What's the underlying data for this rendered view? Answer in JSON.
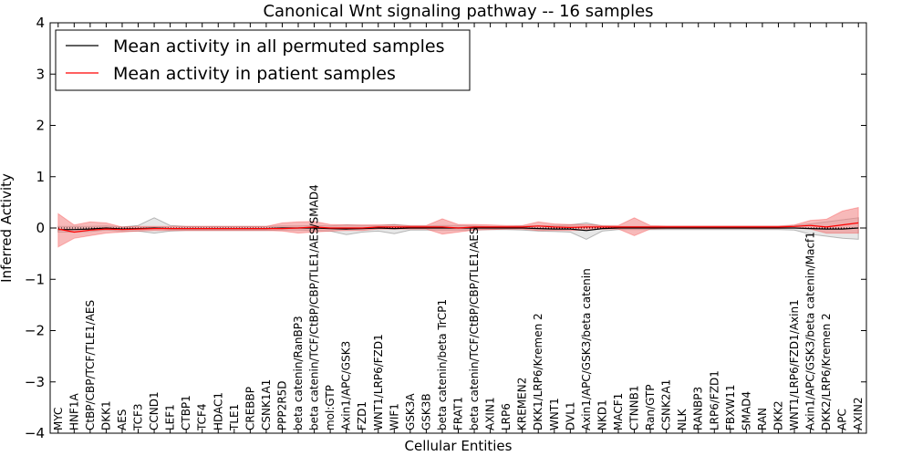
{
  "chart_data": {
    "type": "line",
    "title": "Canonical Wnt signaling pathway -- 16 samples",
    "xlabel": "Cellular Entities",
    "ylabel": "Inferred Activity",
    "ylim": [
      -4,
      4
    ],
    "yticks": [
      "4",
      "3",
      "2",
      "1",
      "0",
      "−1",
      "−2",
      "−3",
      "−4"
    ],
    "legend_position": "top-left",
    "categories": [
      "MYC",
      "HNF1A",
      "CtBP/CBP/TCF/TLE1/AES",
      "DKK1",
      "AES",
      "TCF3",
      "CCND1",
      "LEF1",
      "CTBP1",
      "TCF4",
      "HDAC1",
      "TLE1",
      "CREBBP",
      "CSNK1A1",
      "PPP2R5D",
      "beta catenin/RanBP3",
      "beta catenin/TCF/CtBP/CBP/TLE1/AES/SMAD4",
      "mol:GTP",
      "Axin1/APC/GSK3",
      "FZD1",
      "WNT1/LRP6/FZD1",
      "WIF1",
      "GSK3A",
      "GSK3B",
      "beta catenin/beta TrCP1",
      "FRAT1",
      "beta catenin/TCF/CtBP/CBP/TLE1/AES",
      "AXIN1",
      "LRP6",
      "KREMEN2",
      "DKK1/LRP6/Kremen 2",
      "WNT1",
      "DVL1",
      "Axin1/APC/GSK3/beta catenin",
      "NKD1",
      "MACF1",
      "CTNNB1",
      "Ran/GTP",
      "CSNK2A1",
      "NLK",
      "RANBP3",
      "LRP6/FZD1",
      "FBXW11",
      "SMAD4",
      "RAN",
      "DKK2",
      "WNT1/LRP6/FZD1/Axin1",
      "Axin1/APC/GSK3/beta catenin/Macf1",
      "DKK2/LRP6/Kremen 2",
      "APC",
      "AXIN2"
    ],
    "series": [
      {
        "name": "Mean activity in all permuted samples",
        "color": "#000000",
        "band_color": "#bbbbbb",
        "values": [
          -0.03,
          -0.03,
          -0.02,
          0.0,
          -0.02,
          -0.01,
          0.0,
          -0.01,
          -0.01,
          -0.01,
          -0.01,
          -0.01,
          -0.01,
          -0.01,
          0.0,
          0.0,
          0.0,
          -0.01,
          -0.02,
          -0.01,
          0.0,
          -0.01,
          0.0,
          0.0,
          0.0,
          0.0,
          0.0,
          0.0,
          0.0,
          0.0,
          -0.01,
          -0.02,
          -0.02,
          -0.05,
          -0.01,
          0.0,
          0.0,
          0.0,
          0.0,
          0.0,
          0.0,
          0.0,
          0.0,
          0.0,
          0.0,
          0.0,
          0.0,
          -0.01,
          -0.02,
          -0.02,
          0.0
        ],
        "lower": [
          -0.08,
          -0.08,
          -0.07,
          -0.04,
          -0.06,
          -0.06,
          -0.1,
          -0.06,
          -0.05,
          -0.05,
          -0.05,
          -0.05,
          -0.05,
          -0.05,
          -0.04,
          -0.04,
          -0.05,
          -0.06,
          -0.13,
          -0.08,
          -0.06,
          -0.11,
          -0.04,
          -0.04,
          -0.04,
          -0.04,
          -0.04,
          -0.03,
          -0.03,
          -0.04,
          -0.06,
          -0.07,
          -0.08,
          -0.22,
          -0.06,
          -0.03,
          -0.03,
          -0.03,
          -0.03,
          -0.03,
          -0.03,
          -0.03,
          -0.03,
          -0.03,
          -0.03,
          -0.03,
          -0.04,
          -0.12,
          -0.16,
          -0.2,
          -0.22
        ],
        "upper": [
          0.03,
          0.03,
          0.03,
          0.04,
          0.02,
          0.05,
          0.2,
          0.05,
          0.03,
          0.03,
          0.03,
          0.03,
          0.03,
          0.03,
          0.04,
          0.04,
          0.05,
          0.04,
          0.06,
          0.05,
          0.05,
          0.07,
          0.04,
          0.04,
          0.05,
          0.05,
          0.04,
          0.03,
          0.03,
          0.04,
          0.04,
          0.05,
          0.06,
          0.1,
          0.04,
          0.03,
          0.03,
          0.03,
          0.03,
          0.03,
          0.03,
          0.03,
          0.03,
          0.03,
          0.03,
          0.03,
          0.05,
          0.08,
          0.12,
          0.16,
          0.2
        ]
      },
      {
        "name": "Mean activity in patient samples",
        "color": "#ff0000",
        "band_color": "#f08080",
        "values": [
          -0.02,
          -0.08,
          -0.04,
          -0.02,
          -0.03,
          -0.02,
          -0.01,
          -0.01,
          -0.01,
          -0.01,
          -0.01,
          -0.01,
          -0.01,
          -0.01,
          -0.01,
          0.0,
          0.02,
          0.0,
          0.0,
          0.0,
          0.02,
          0.02,
          0.02,
          0.02,
          0.02,
          0.0,
          0.02,
          0.02,
          0.02,
          0.02,
          0.04,
          0.02,
          0.01,
          0.02,
          0.02,
          0.02,
          0.02,
          0.02,
          0.02,
          0.02,
          0.02,
          0.02,
          0.02,
          0.02,
          0.02,
          0.02,
          0.03,
          0.05,
          0.02,
          0.06,
          0.1
        ],
        "lower": [
          -0.37,
          -0.2,
          -0.15,
          -0.1,
          -0.08,
          -0.06,
          -0.05,
          -0.05,
          -0.05,
          -0.05,
          -0.05,
          -0.05,
          -0.05,
          -0.05,
          -0.06,
          -0.1,
          -0.08,
          -0.06,
          -0.05,
          -0.05,
          -0.02,
          -0.02,
          -0.02,
          -0.02,
          -0.12,
          -0.08,
          -0.04,
          -0.03,
          -0.02,
          -0.02,
          -0.05,
          -0.05,
          -0.05,
          -0.04,
          -0.02,
          -0.02,
          -0.15,
          -0.02,
          -0.01,
          -0.01,
          -0.01,
          -0.01,
          -0.01,
          -0.01,
          -0.01,
          -0.01,
          0.0,
          -0.02,
          -0.1,
          -0.1,
          -0.1
        ],
        "upper": [
          0.28,
          0.06,
          0.12,
          0.1,
          0.02,
          0.03,
          0.03,
          0.03,
          0.03,
          0.03,
          0.03,
          0.03,
          0.03,
          0.03,
          0.1,
          0.12,
          0.13,
          0.07,
          0.06,
          0.06,
          0.06,
          0.06,
          0.05,
          0.05,
          0.18,
          0.07,
          0.07,
          0.06,
          0.05,
          0.05,
          0.12,
          0.08,
          0.07,
          0.07,
          0.05,
          0.05,
          0.2,
          0.05,
          0.04,
          0.04,
          0.04,
          0.04,
          0.04,
          0.04,
          0.04,
          0.04,
          0.06,
          0.15,
          0.17,
          0.33,
          0.4
        ]
      }
    ]
  }
}
